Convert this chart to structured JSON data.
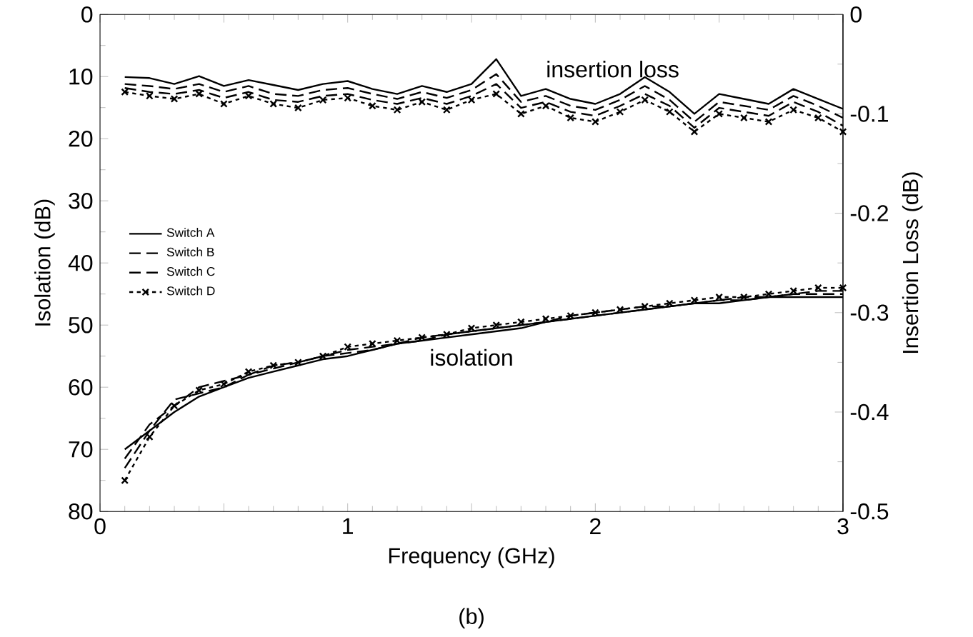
{
  "chart_data": {
    "type": "line",
    "xlabel": "Frequency (GHz)",
    "ylabel": "Isolation (dB)",
    "y2label": "Insertion Loss (dB)",
    "x": [
      0.1,
      0.2,
      0.3,
      0.4,
      0.5,
      0.6,
      0.7,
      0.8,
      0.9,
      1.0,
      1.1,
      1.2,
      1.3,
      1.4,
      1.5,
      1.6,
      1.7,
      1.8,
      1.9,
      2.0,
      2.1,
      2.2,
      2.3,
      2.4,
      2.5,
      2.6,
      2.7,
      2.8,
      2.9,
      3.0
    ],
    "xlim": [
      0,
      3
    ],
    "xticks": [
      0,
      {
        "value": 0.5,
        "label": null
      },
      1,
      {
        "value": 1.5,
        "label": null
      },
      2,
      {
        "value": 2.5,
        "label": null
      },
      3
    ],
    "ylim": [
      80,
      0
    ],
    "yticks": [
      0,
      10,
      20,
      30,
      40,
      50,
      60,
      70,
      80
    ],
    "y2lim": [
      -0.5,
      0
    ],
    "y2ticks": [
      -0.5,
      -0.4,
      -0.3,
      -0.2,
      -0.1,
      0
    ],
    "grid": false,
    "legend": "left",
    "series": [
      {
        "name": "Switch A",
        "color": "#000000",
        "line_style": "solid",
        "marker": "none",
        "axis": "y",
        "values": [
          70,
          67,
          64,
          61.5,
          60,
          58.5,
          57.5,
          56.5,
          55.5,
          55,
          54,
          53,
          52.5,
          52,
          51.5,
          51,
          50.5,
          49.5,
          49,
          48.5,
          48,
          47.5,
          47,
          46.5,
          46.5,
          46,
          45.5,
          45.5,
          45.5,
          45.5
        ]
      },
      {
        "name": "Switch B",
        "color": "#000000",
        "line_style": "dashed",
        "marker": "none",
        "axis": "y",
        "values": [
          71.5,
          66,
          63,
          60,
          59,
          58,
          56.5,
          56,
          55,
          54,
          53.5,
          53,
          52,
          51.5,
          51,
          50.5,
          50,
          49.5,
          48.5,
          48,
          47.5,
          47,
          47,
          46.5,
          46,
          45.5,
          45.5,
          45,
          45,
          45
        ]
      },
      {
        "name": "Switch C",
        "color": "#000000",
        "line_style": "dashed",
        "marker": "none",
        "axis": "y",
        "values": [
          73,
          67,
          62,
          61,
          60,
          58,
          57,
          56,
          55,
          54.5,
          54,
          53,
          52.5,
          51.5,
          51,
          50.5,
          50,
          49.5,
          49,
          48.5,
          48,
          47.5,
          47,
          46.5,
          46,
          46,
          45.5,
          45,
          44.5,
          44.5
        ]
      },
      {
        "name": "Switch D",
        "color": "#000000",
        "line_style": "dotted",
        "marker": "cross",
        "axis": "y",
        "values": [
          75,
          68,
          63,
          60.5,
          59.5,
          57.5,
          56.5,
          56,
          55,
          53.5,
          53,
          52.5,
          52,
          51.5,
          50.5,
          50,
          49.5,
          49,
          48.5,
          48,
          47.5,
          47,
          46.5,
          46,
          45.5,
          45.5,
          45,
          44.5,
          44,
          44
        ]
      },
      {
        "color": "#000000",
        "line_style": "solid",
        "marker": "none",
        "axis": "y2",
        "values": [
          -0.063,
          -0.064,
          -0.07,
          -0.062,
          -0.072,
          -0.066,
          -0.071,
          -0.076,
          -0.07,
          -0.067,
          -0.075,
          -0.08,
          -0.072,
          -0.078,
          -0.07,
          -0.045,
          -0.082,
          -0.075,
          -0.085,
          -0.09,
          -0.08,
          -0.063,
          -0.078,
          -0.1,
          -0.08,
          -0.085,
          -0.09,
          -0.075,
          -0.085,
          -0.095
        ]
      },
      {
        "color": "#000000",
        "line_style": "dashed",
        "marker": "none",
        "axis": "y2",
        "values": [
          -0.07,
          -0.072,
          -0.075,
          -0.07,
          -0.078,
          -0.072,
          -0.08,
          -0.082,
          -0.076,
          -0.074,
          -0.08,
          -0.085,
          -0.078,
          -0.084,
          -0.076,
          -0.06,
          -0.088,
          -0.082,
          -0.092,
          -0.096,
          -0.086,
          -0.072,
          -0.086,
          -0.108,
          -0.088,
          -0.092,
          -0.096,
          -0.082,
          -0.092,
          -0.104
        ]
      },
      {
        "color": "#000000",
        "line_style": "dashed",
        "marker": "none",
        "axis": "y2",
        "values": [
          -0.074,
          -0.078,
          -0.08,
          -0.076,
          -0.084,
          -0.078,
          -0.086,
          -0.088,
          -0.082,
          -0.08,
          -0.086,
          -0.09,
          -0.084,
          -0.09,
          -0.082,
          -0.07,
          -0.094,
          -0.088,
          -0.098,
          -0.102,
          -0.092,
          -0.08,
          -0.092,
          -0.114,
          -0.094,
          -0.098,
          -0.102,
          -0.088,
          -0.098,
          -0.112
        ]
      },
      {
        "color": "#000000",
        "line_style": "dotted",
        "marker": "cross",
        "axis": "y2",
        "values": [
          -0.078,
          -0.082,
          -0.085,
          -0.08,
          -0.09,
          -0.082,
          -0.09,
          -0.094,
          -0.086,
          -0.084,
          -0.092,
          -0.096,
          -0.088,
          -0.096,
          -0.086,
          -0.08,
          -0.1,
          -0.092,
          -0.104,
          -0.108,
          -0.098,
          -0.086,
          -0.098,
          -0.118,
          -0.1,
          -0.104,
          -0.108,
          -0.096,
          -0.104,
          -0.118
        ]
      }
    ],
    "annotations": [
      "insertion loss",
      "isolation",
      "(b)"
    ]
  }
}
